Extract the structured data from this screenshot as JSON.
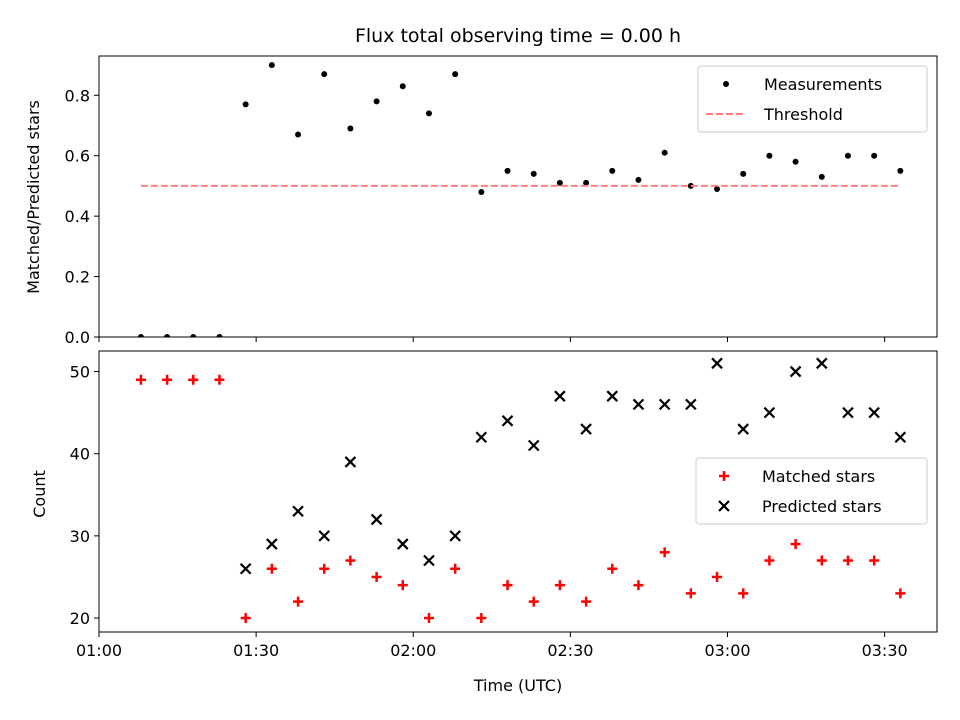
{
  "chart_data": [
    {
      "type": "scatter",
      "title": "Flux total observing time = 0.00 h",
      "xlabel": "",
      "ylabel": "Matched/Predicted stars",
      "xlim": [
        "01:00",
        "03:40"
      ],
      "ylim": [
        0,
        0.93
      ],
      "yticks": [
        0.0,
        0.2,
        0.4,
        0.6,
        0.8
      ],
      "ytick_labels": [
        "0.0",
        "0.2",
        "0.4",
        "0.6",
        "0.8"
      ],
      "grid": false,
      "legend_placement": "top-right",
      "series": [
        {
          "name": "Measurements",
          "marker": "dot",
          "color": "#000000",
          "x": [
            "01:08",
            "01:13",
            "01:18",
            "01:23",
            "01:28",
            "01:33",
            "01:38",
            "01:43",
            "01:48",
            "01:53",
            "01:58",
            "02:03",
            "02:08",
            "02:13",
            "02:18",
            "02:23",
            "02:28",
            "02:33",
            "02:38",
            "02:43",
            "02:48",
            "02:53",
            "02:58",
            "03:03",
            "03:08",
            "03:13",
            "03:18",
            "03:23",
            "03:28",
            "03:33"
          ],
          "y": [
            0.0,
            0.0,
            0.0,
            0.0,
            0.77,
            0.9,
            0.67,
            0.87,
            0.69,
            0.78,
            0.83,
            0.74,
            0.87,
            0.48,
            0.55,
            0.54,
            0.51,
            0.51,
            0.55,
            0.52,
            0.61,
            0.5,
            0.49,
            0.54,
            0.6,
            0.58,
            0.53,
            0.6,
            0.6,
            0.55
          ]
        },
        {
          "name": "Threshold",
          "marker": "dashed-line",
          "color": "#ff7f7f",
          "x": [
            "01:08",
            "03:33"
          ],
          "y": [
            0.5,
            0.5
          ]
        }
      ]
    },
    {
      "type": "scatter",
      "title": "",
      "xlabel": "Time (UTC)",
      "ylabel": "Count",
      "xlim": [
        "01:00",
        "03:40"
      ],
      "ylim": [
        18.3,
        52.5
      ],
      "yticks": [
        20,
        30,
        40,
        50
      ],
      "ytick_labels": [
        "20",
        "30",
        "40",
        "50"
      ],
      "xticks": [
        "01:00",
        "01:30",
        "02:00",
        "02:30",
        "03:00",
        "03:30"
      ],
      "xtick_labels": [
        "01:00",
        "01:30",
        "02:00",
        "02:30",
        "03:00",
        "03:30"
      ],
      "grid": false,
      "legend_placement": "center-right",
      "series": [
        {
          "name": "Matched stars",
          "marker": "plus",
          "color": "#ff0000",
          "x": [
            "01:08",
            "01:13",
            "01:18",
            "01:23",
            "01:28",
            "01:33",
            "01:38",
            "01:43",
            "01:48",
            "01:53",
            "01:58",
            "02:03",
            "02:08",
            "02:13",
            "02:18",
            "02:23",
            "02:28",
            "02:33",
            "02:38",
            "02:43",
            "02:48",
            "02:53",
            "02:58",
            "03:03",
            "03:08",
            "03:13",
            "03:18",
            "03:23",
            "03:28",
            "03:33"
          ],
          "y": [
            49,
            49,
            49,
            49,
            20,
            26,
            22,
            26,
            27,
            25,
            24,
            20,
            26,
            20,
            24,
            22,
            24,
            22,
            26,
            24,
            28,
            23,
            25,
            23,
            27,
            29,
            27,
            27,
            27,
            23
          ]
        },
        {
          "name": "Predicted stars",
          "marker": "x",
          "color": "#000000",
          "x": [
            "01:28",
            "01:33",
            "01:38",
            "01:43",
            "01:48",
            "01:53",
            "01:58",
            "02:03",
            "02:08",
            "02:13",
            "02:18",
            "02:23",
            "02:28",
            "02:33",
            "02:38",
            "02:43",
            "02:48",
            "02:53",
            "02:58",
            "03:03",
            "03:08",
            "03:13",
            "03:18",
            "03:23",
            "03:28",
            "03:33"
          ],
          "y": [
            26,
            29,
            33,
            30,
            39,
            32,
            29,
            27,
            30,
            42,
            44,
            41,
            47,
            43,
            47,
            46,
            46,
            46,
            51,
            43,
            45,
            50,
            51,
            45,
            45,
            42
          ]
        }
      ]
    }
  ]
}
